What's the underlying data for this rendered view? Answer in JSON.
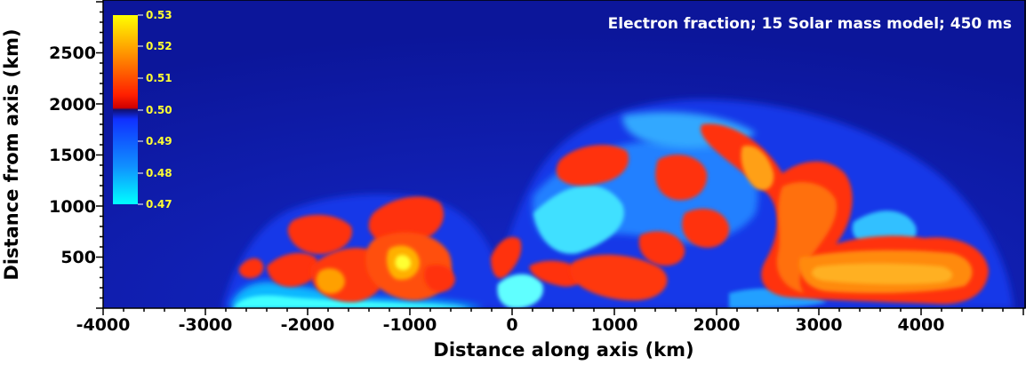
{
  "figure": {
    "title": "Electron fraction; 15 Solar mass model; 450 ms",
    "xlabel": "Distance along axis (km)",
    "ylabel": "Distance from axis (km)",
    "x_ticks": [
      "-4000",
      "-3000",
      "-2000",
      "-1000",
      "0",
      "1000",
      "2000",
      "3000",
      "4000"
    ],
    "y_ticks": [
      "500",
      "1000",
      "1500",
      "2000",
      "2500"
    ],
    "colorbar": {
      "labels": [
        "0.53",
        "0.52",
        "0.51",
        "0.50",
        "0.49",
        "0.48",
        "0.47"
      ],
      "min": 0.47,
      "max": 0.53
    },
    "colors": {
      "background": "#0e1aa0",
      "low": "#00ffff",
      "mid_blue": "#1040ff",
      "high_red": "#ff2000",
      "high_orange": "#ff8000",
      "peak_yellow": "#ffff00"
    }
  }
}
